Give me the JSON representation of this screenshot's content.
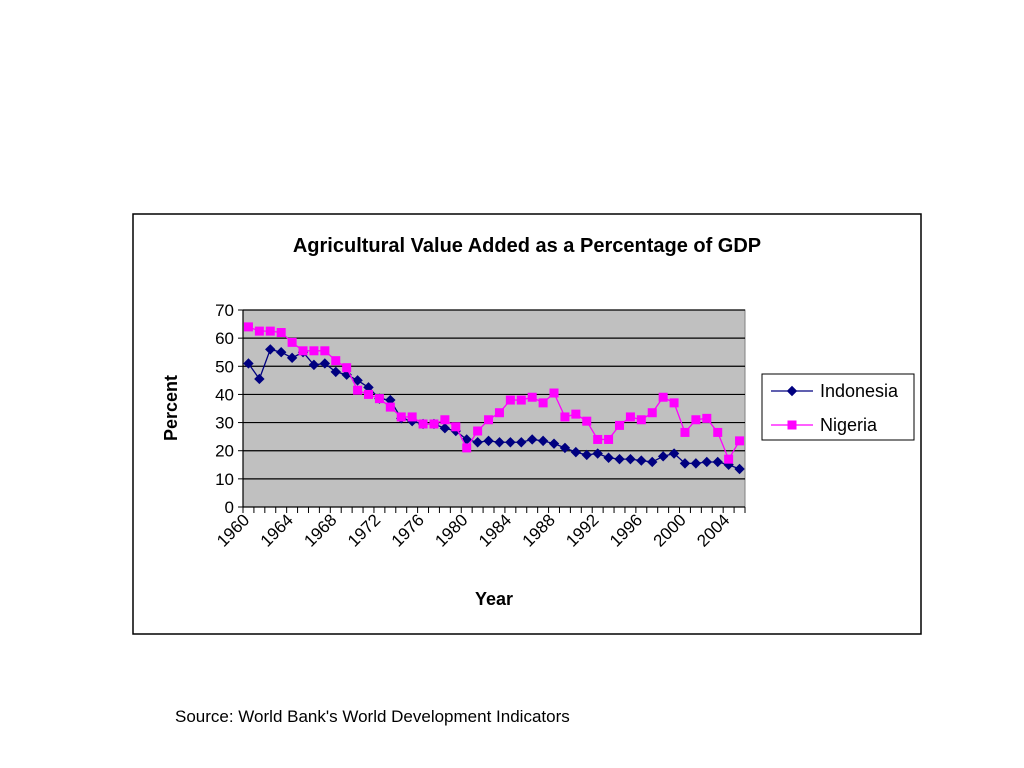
{
  "source_note": "Source: World Bank's World Development Indicators",
  "colors": {
    "plot_bg": "#c0c0c0",
    "gridline": "#000000",
    "indonesia": "#000080",
    "nigeria": "#ff00ff"
  },
  "chart_data": {
    "type": "line",
    "title": "Agricultural Value Added as a Percentage of GDP",
    "xlabel": "Year",
    "ylabel": "Percent",
    "ylim": [
      0,
      70
    ],
    "y_ticks": [
      0,
      10,
      20,
      30,
      40,
      50,
      60,
      70
    ],
    "x_tick_labels": [
      "1960",
      "1964",
      "1968",
      "1972",
      "1976",
      "1980",
      "1984",
      "1988",
      "1992",
      "1996",
      "2000",
      "2004"
    ],
    "grid": "horizontal",
    "legend_position": "right",
    "x": [
      1960,
      1961,
      1962,
      1963,
      1964,
      1965,
      1966,
      1967,
      1968,
      1969,
      1970,
      1971,
      1972,
      1973,
      1974,
      1975,
      1976,
      1977,
      1978,
      1979,
      1980,
      1981,
      1982,
      1983,
      1984,
      1985,
      1986,
      1987,
      1988,
      1989,
      1990,
      1991,
      1992,
      1993,
      1994,
      1995,
      1996,
      1997,
      1998,
      1999,
      2000,
      2001,
      2002,
      2003,
      2004,
      2005
    ],
    "series": [
      {
        "name": "Indonesia",
        "marker": "diamond",
        "values": [
          51,
          45.5,
          56,
          55,
          53,
          55,
          50.5,
          51,
          48,
          47,
          45,
          42.5,
          38.5,
          38,
          31.5,
          30.5,
          29.5,
          29.5,
          28,
          27,
          24,
          23,
          23.5,
          23,
          23,
          23,
          24,
          23.5,
          22.5,
          21,
          19.5,
          18.5,
          19,
          17.5,
          17,
          17,
          16.5,
          16,
          18,
          19,
          15.5,
          15.5,
          16,
          16,
          15,
          13.5
        ]
      },
      {
        "name": "Nigeria",
        "marker": "square",
        "values": [
          64,
          62.5,
          62.5,
          62,
          58.5,
          55.5,
          55.5,
          55.5,
          52,
          49.5,
          41.5,
          40,
          38.5,
          35.5,
          32,
          32,
          29.5,
          29.5,
          31,
          28.5,
          21,
          27,
          31,
          33.5,
          38,
          38,
          39,
          37,
          40.5,
          32,
          33,
          30.5,
          24,
          24,
          29,
          32,
          31,
          33.5,
          39,
          37,
          26.5,
          31,
          31.5,
          26.5,
          17,
          23.5
        ]
      }
    ]
  }
}
